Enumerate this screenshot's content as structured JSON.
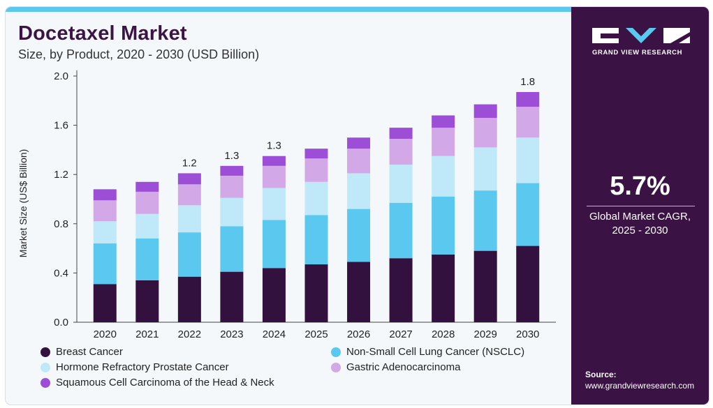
{
  "header": {
    "title": "Docetaxel Market",
    "subtitle": "Size, by Product, 2020 - 2030 (USD Billion)"
  },
  "sidebar": {
    "brand": "GRAND VIEW RESEARCH",
    "cagr_value": "5.7%",
    "cagr_label_line1": "Global Market CAGR,",
    "cagr_label_line2": "2025 - 2030",
    "source_label": "Source:",
    "source_url": "www.grandviewresearch.com"
  },
  "colors": {
    "breast": "#33113f",
    "nsclc": "#5bc8f0",
    "hormone": "#bfe8f8",
    "gastric": "#d3a8e6",
    "squamous": "#9c4fd6",
    "sidebar": "#3b1244",
    "accent": "#5bc8f0"
  },
  "chart_data": {
    "type": "bar",
    "stacked": true,
    "ylabel": "Market Size (US$ Billion)",
    "xlabel": "",
    "ylim": [
      0,
      2.0
    ],
    "yticks": [
      "0.0",
      "0.4",
      "0.8",
      "1.2",
      "1.6",
      "2.0"
    ],
    "categories": [
      "2020",
      "2021",
      "2022",
      "2023",
      "2024",
      "2025",
      "2026",
      "2027",
      "2028",
      "2029",
      "2030"
    ],
    "series": [
      {
        "name": "Breast Cancer",
        "color": "#33113f",
        "values": [
          0.31,
          0.34,
          0.37,
          0.41,
          0.44,
          0.47,
          0.49,
          0.52,
          0.55,
          0.58,
          0.62
        ]
      },
      {
        "name": "Non-Small Cell Lung Cancer (NSCLC)",
        "color": "#5bc8f0",
        "values": [
          0.33,
          0.34,
          0.36,
          0.37,
          0.39,
          0.4,
          0.43,
          0.45,
          0.47,
          0.49,
          0.51
        ]
      },
      {
        "name": "Hormone Refractory Prostate Cancer",
        "color": "#bfe8f8",
        "values": [
          0.18,
          0.2,
          0.22,
          0.23,
          0.26,
          0.27,
          0.29,
          0.31,
          0.33,
          0.35,
          0.37
        ]
      },
      {
        "name": "Gastric Adenocarcinoma",
        "color": "#d3a8e6",
        "values": [
          0.17,
          0.18,
          0.17,
          0.18,
          0.18,
          0.19,
          0.2,
          0.21,
          0.23,
          0.24,
          0.25
        ]
      },
      {
        "name": "Squamous Cell Carcinoma of the Head & Neck",
        "color": "#9c4fd6",
        "values": [
          0.09,
          0.08,
          0.09,
          0.08,
          0.08,
          0.08,
          0.09,
          0.09,
          0.1,
          0.11,
          0.12
        ]
      }
    ],
    "bar_labels": {
      "2022": "1.2",
      "2023": "1.3",
      "2024": "1.3",
      "2030": "1.8"
    },
    "grid": false,
    "legend": "bottom"
  }
}
